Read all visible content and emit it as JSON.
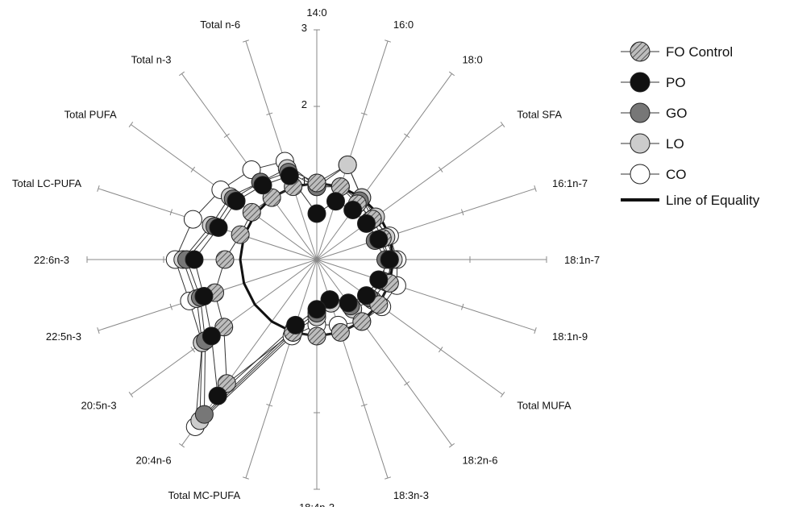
{
  "chart_data": {
    "type": "radar",
    "axis_scale_labels": [
      "1",
      "2",
      "3"
    ],
    "categories": [
      "14:0",
      "16:0",
      "18:0",
      "Total SFA",
      "16:1n-7",
      "18:1n-7",
      "18:1n-9",
      "Total MUFA",
      "18:2n-6",
      "18:3n-3",
      "18:4n-3",
      "Total MC-PUFA",
      "20:4n-6",
      "20:5n-3",
      "22:5n-3",
      "22:6n-3",
      "Total LC-PUFA",
      "Total PUFA",
      "Total n-3",
      "Total n-6"
    ],
    "rmax": 3,
    "series": [
      {
        "name": "FO Control",
        "style": "hatched",
        "color": "#b0b0b0",
        "values": [
          1.0,
          1.0,
          0.9,
          0.9,
          0.9,
          0.95,
          1.0,
          1.0,
          1.0,
          1.0,
          1.0,
          1.0,
          2.0,
          1.5,
          1.4,
          1.2,
          1.05,
          1.05,
          1.0,
          1.0
        ]
      },
      {
        "name": "PO",
        "style": "filled",
        "color": "#111111",
        "values": [
          0.6,
          0.8,
          0.8,
          0.8,
          0.85,
          0.95,
          0.85,
          0.8,
          0.7,
          0.55,
          0.65,
          0.9,
          2.2,
          1.7,
          1.55,
          1.6,
          1.35,
          1.3,
          1.2,
          1.15
        ]
      },
      {
        "name": "GO",
        "style": "filled",
        "color": "#777777",
        "values": [
          0.95,
          1.0,
          0.95,
          0.85,
          0.8,
          0.9,
          0.9,
          0.85,
          0.75,
          0.55,
          0.7,
          0.95,
          2.5,
          1.8,
          1.6,
          1.7,
          1.4,
          1.35,
          1.25,
          1.2
        ]
      },
      {
        "name": "LO",
        "style": "filled",
        "color": "#cccccc",
        "values": [
          1.0,
          1.3,
          1.0,
          0.95,
          0.95,
          1.0,
          0.95,
          0.9,
          0.8,
          0.6,
          0.75,
          1.0,
          2.6,
          1.85,
          1.65,
          1.75,
          1.45,
          1.4,
          1.25,
          1.25
        ]
      },
      {
        "name": "CO",
        "style": "open",
        "color": "#ffffff",
        "values": [
          0.95,
          1.3,
          1.0,
          0.9,
          1.0,
          1.05,
          1.1,
          1.05,
          1.0,
          0.9,
          0.85,
          1.05,
          2.7,
          1.85,
          1.75,
          1.85,
          1.7,
          1.55,
          1.45,
          1.35
        ]
      }
    ],
    "equality_line": {
      "name": "Line of Equality",
      "value": 1.0,
      "color": "#111111"
    },
    "legend_position": "right"
  }
}
